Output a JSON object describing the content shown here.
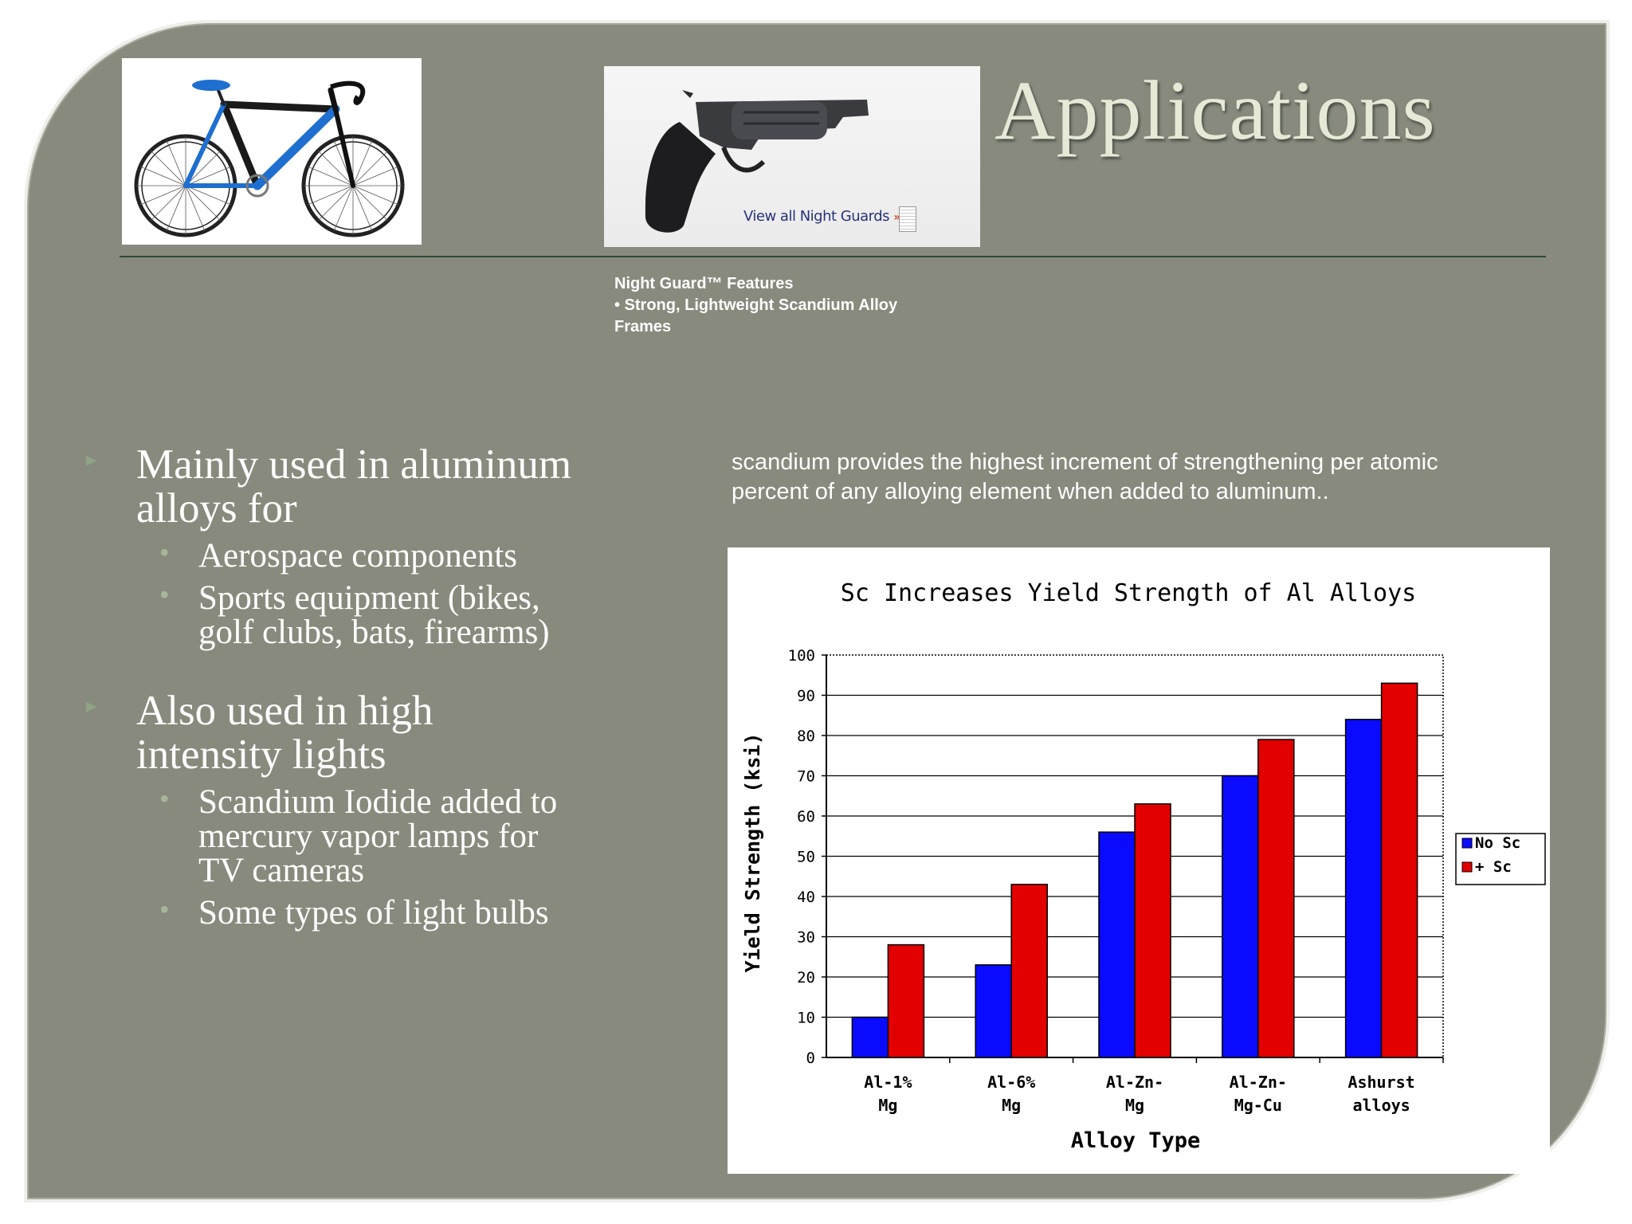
{
  "title": "Applications",
  "gun_photo": {
    "link_text": "View all Night Guards",
    "link_arrow": "»"
  },
  "caption": {
    "line1": "Night Guard™ Features",
    "line2": "• Strong, Lightweight Scandium Alloy",
    "line3": "Frames"
  },
  "bullets": {
    "b1": {
      "line1": "Mainly used in aluminum",
      "line2": "alloys for"
    },
    "b1_sub1": "Aerospace components",
    "b1_sub2": {
      "line1": "Sports equipment (bikes,",
      "line2": "golf clubs, bats, firearms)"
    },
    "b2": {
      "line1": "Also used in high",
      "line2": "intensity lights"
    },
    "b2_sub1": {
      "line1": "Scandium Iodide added to",
      "line2": "mercury vapor lamps for",
      "line3": "TV cameras"
    },
    "b2_sub2": "Some types of light bulbs"
  },
  "quote": {
    "line1": "scandium provides the highest increment of strengthening per atomic",
    "line2": "percent of any alloying element when added to aluminum.."
  },
  "colors": {
    "slide_bg": "#878a7d",
    "title": "#e6e9d6",
    "no_sc": "#0a0aff",
    "plus_sc": "#e30000"
  },
  "chart_data": {
    "type": "bar",
    "title": "Sc Increases Yield Strength of Al Alloys",
    "xlabel": "Alloy Type",
    "ylabel": "Yield Strength (ksi)",
    "ylim": [
      0,
      100
    ],
    "yticks": [
      0,
      10,
      20,
      30,
      40,
      50,
      60,
      70,
      80,
      90,
      100
    ],
    "categories": [
      [
        "Al-1%",
        "Mg"
      ],
      [
        "Al-6%",
        "Mg"
      ],
      [
        "Al-Zn-",
        "Mg"
      ],
      [
        "Al-Zn-",
        "Mg-Cu"
      ],
      [
        "Ashurst",
        "alloys"
      ]
    ],
    "series": [
      {
        "name": "No Sc",
        "color": "#0a0aff",
        "values": [
          10,
          23,
          56,
          70,
          84
        ]
      },
      {
        "name": "+ Sc",
        "color": "#e30000",
        "values": [
          28,
          43,
          63,
          79,
          93
        ]
      }
    ],
    "grid": true,
    "legend": "right"
  }
}
